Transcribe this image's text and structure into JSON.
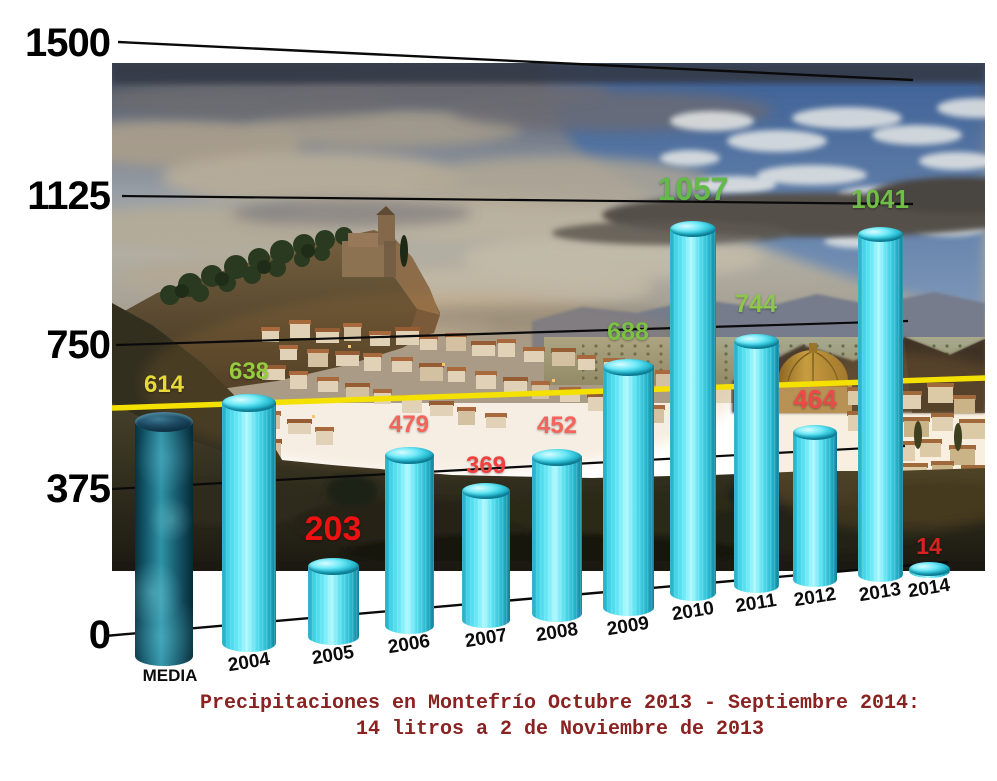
{
  "page": {
    "background": "#ffffff"
  },
  "title_lines": [
    "Precipitaciones en Montefrío Octubre 2013 - Septiembre 2014:",
    "14 litros a 2 de Noviembre de 2013"
  ],
  "chart_data": {
    "type": "bar",
    "style": "3d-cylinder-bars-in-perspective-over-photo",
    "title": "Precipitaciones en Montefrío Octubre 2013 - Septiembre 2014: 14 litros a 2 de Noviembre de 2013",
    "title_color": "#8b2222",
    "categories": [
      "MEDIA",
      "2004",
      "2005",
      "2006",
      "2007",
      "2008",
      "2009",
      "2010",
      "2011",
      "2012",
      "2013",
      "2014"
    ],
    "values": [
      614,
      638,
      203,
      479,
      369,
      452,
      688,
      1057,
      744,
      464,
      1041,
      14
    ],
    "value_label_colors": [
      "#e8d93a",
      "#95cb3e",
      "#ee1111",
      "#f4645a",
      "#f13e3e",
      "#f4645a",
      "#7cc241",
      "#63b94a",
      "#8cc74c",
      "#ec4a4a",
      "#6fbf46",
      "#dd2020"
    ],
    "bar_color": "#3fd9ec",
    "media_bar_color": "#1d6b80",
    "y_ticks": [
      1500,
      1125,
      750,
      375,
      0
    ],
    "ylim": [
      0,
      1500
    ],
    "grid": "horizontal-perspective-lines",
    "legend": "none",
    "reference_line": {
      "value": 614,
      "color": "#f5e100"
    },
    "background_photo": "Montefrío hilltop village: rocky crag with fortress church, white houses, domed round church, olive groves, cloudy evening sky"
  }
}
